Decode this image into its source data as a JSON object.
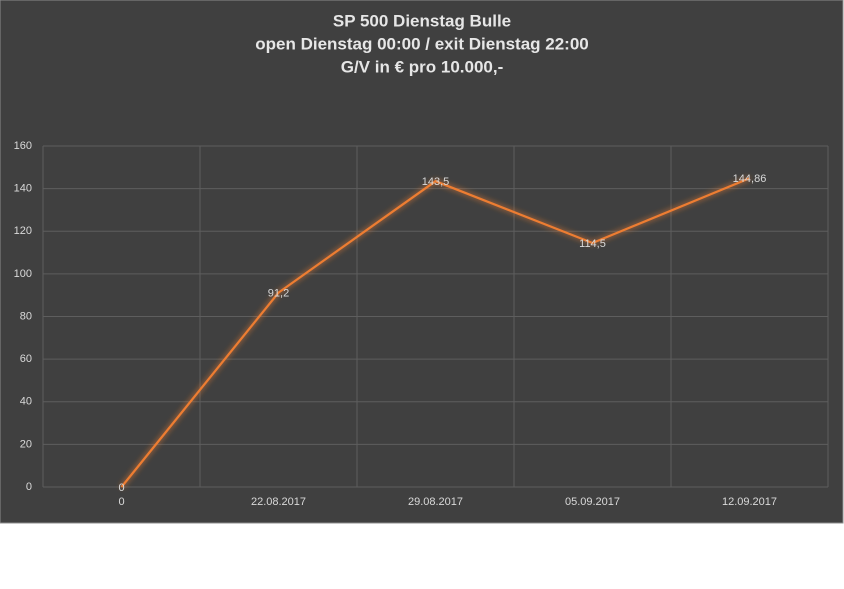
{
  "chart_data": {
    "type": "line",
    "title": [
      "SP 500 Dienstag Bulle",
      "open Dienstag 00:00 / exit Dienstag 22:00",
      "G/V in €  pro 10.000,-"
    ],
    "categories": [
      "0",
      "22.08.2017",
      "29.08.2017",
      "05.09.2017",
      "12.09.2017"
    ],
    "values": [
      0,
      91.2,
      143.5,
      114.5,
      144.86
    ],
    "value_labels": [
      "0",
      "91,2",
      "143,5",
      "114,5",
      "144,86"
    ],
    "color": "#ed7d31",
    "ylim": [
      0,
      160
    ],
    "yticks": [
      0,
      20,
      40,
      60,
      80,
      100,
      120,
      140,
      160
    ],
    "grid": true
  }
}
